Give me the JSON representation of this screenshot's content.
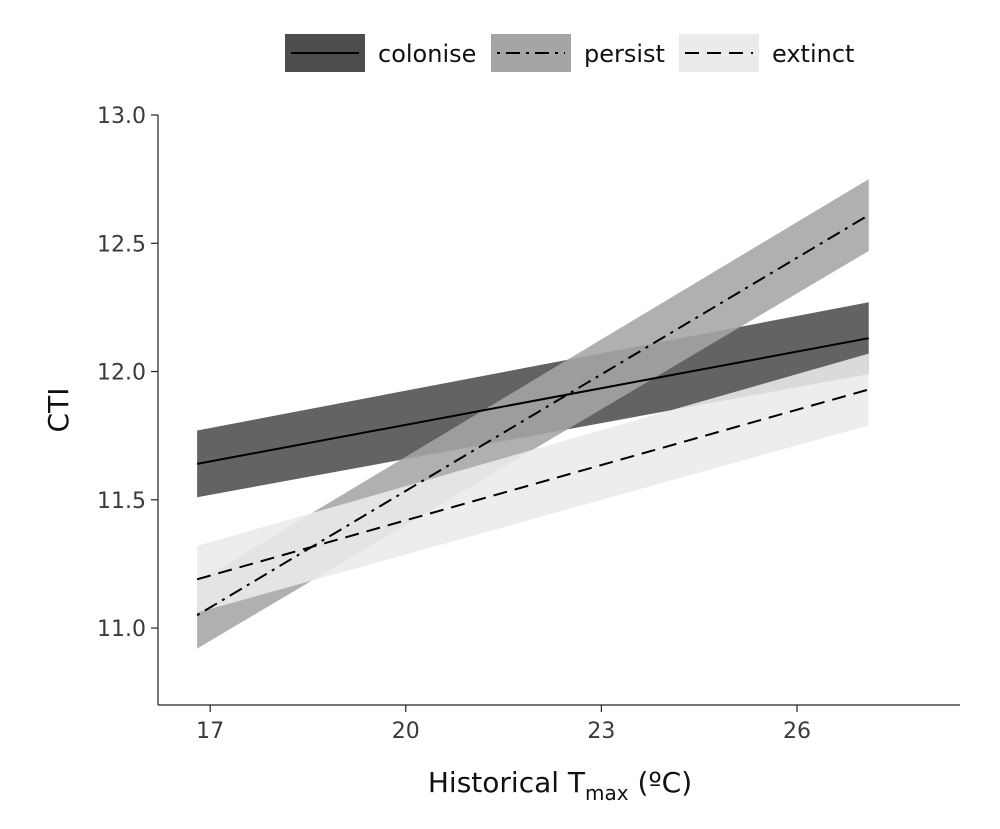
{
  "chart_data": {
    "type": "line",
    "xlabel": {
      "main": "Historical T",
      "sub": "max",
      "suffix": " (ºC)"
    },
    "ylabel": "CTI",
    "xlim": [
      16.2,
      28.5
    ],
    "ylim": [
      10.7,
      13.0
    ],
    "x_ticks": [
      {
        "value": 17,
        "label": "17"
      },
      {
        "value": 20,
        "label": "20"
      },
      {
        "value": 23,
        "label": "23"
      },
      {
        "value": 26,
        "label": "26"
      }
    ],
    "y_ticks": [
      {
        "value": 11.0,
        "label": "11.0"
      },
      {
        "value": 11.5,
        "label": "11.5"
      },
      {
        "value": 12.0,
        "label": "12.0"
      },
      {
        "value": 12.5,
        "label": "12.5"
      },
      {
        "value": 13.0,
        "label": "13.0"
      }
    ],
    "grid": false,
    "legend_position": "top",
    "series": [
      {
        "name": "colonise",
        "style": "solid",
        "band_color": "#4d4d4d",
        "x": [
          16.8,
          27.1
        ],
        "y": [
          11.64,
          12.13
        ],
        "lower": [
          11.51,
          11.99
        ],
        "upper": [
          11.77,
          12.27
        ]
      },
      {
        "name": "persist",
        "style": "dotdash",
        "band_color": "#a5a5a5",
        "x": [
          16.8,
          27.1
        ],
        "y": [
          11.05,
          12.61
        ],
        "lower": [
          10.92,
          12.47
        ],
        "upper": [
          11.18,
          12.75
        ]
      },
      {
        "name": "extinct",
        "style": "dashed",
        "band_color": "#ebebeb",
        "x": [
          16.8,
          27.1
        ],
        "y": [
          11.19,
          11.93
        ],
        "lower": [
          11.06,
          11.79
        ],
        "upper": [
          11.32,
          12.07
        ]
      }
    ]
  }
}
